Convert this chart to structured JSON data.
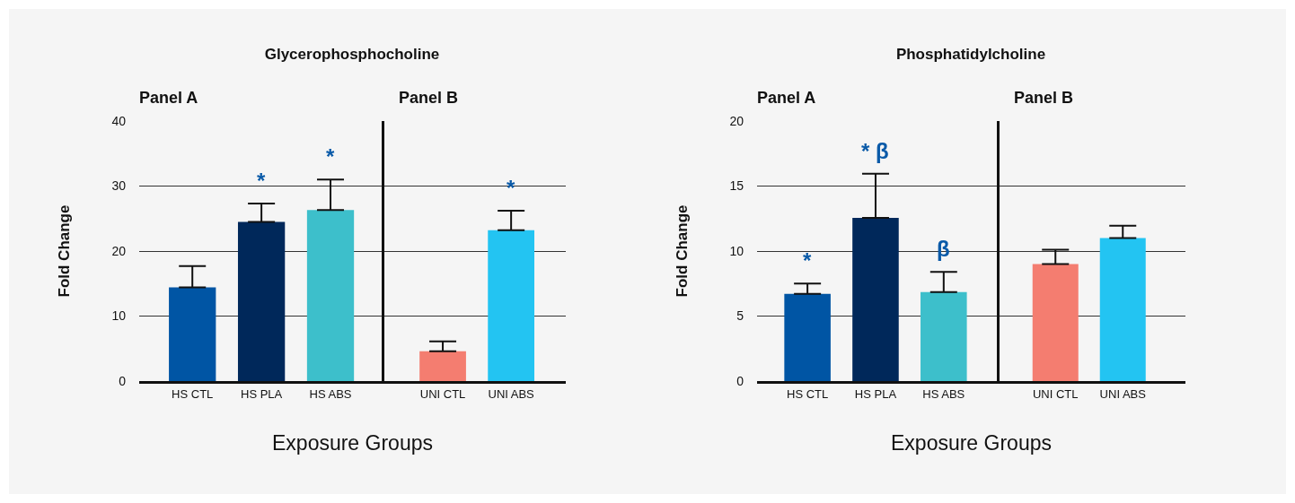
{
  "chart_data": [
    {
      "type": "bar",
      "title": "Glycerophosphocholine",
      "xlabel": "Exposure Groups",
      "ylabel": "Fold Change",
      "categories": [
        "HS CTL",
        "HS PLA",
        "HS ABS"
      ],
      "values": [
        14.4,
        24.5,
        26.3
      ],
      "errors": [
        [
          14.4,
          17.7
        ],
        [
          24.5,
          27.3
        ],
        [
          26.3,
          31.0
        ]
      ],
      "colors": [
        "#0055a4",
        "#00285a",
        "#3dbfcb"
      ],
      "ylim": [
        0,
        40
      ],
      "yticks": [
        0,
        10,
        20,
        30,
        40
      ],
      "grid": "y",
      "annotations": [
        "Panel A",
        {
          "text": "*",
          "x": "HS PLA",
          "y": 27.3
        },
        {
          "text": "*",
          "x": "HS ABS",
          "y": 31.0
        }
      ]
    },
    {
      "type": "bar",
      "categories": [
        "UNI CTL",
        "UNI ABS"
      ],
      "values": [
        4.6,
        23.2
      ],
      "errors": [
        [
          4.6,
          6.1
        ],
        [
          23.2,
          26.2
        ]
      ],
      "colors": [
        "#f47d70",
        "#23c4f2"
      ],
      "ylim": [
        0,
        40
      ],
      "yticks": [
        0,
        10,
        20,
        30,
        40
      ],
      "grid": "y",
      "tick_labels": "x",
      "annotations": [
        "Panel B",
        {
          "text": "*",
          "x": "UNI ABS",
          "y": 26.2
        }
      ]
    },
    {
      "type": "bar",
      "title": "Phosphatidylcholine",
      "xlabel": "Exposure Groups",
      "ylabel": "Fold Change",
      "categories": [
        "HS CTL",
        "HS PLA",
        "HS ABS"
      ],
      "values": [
        6.7,
        12.55,
        6.85
      ],
      "errors": [
        [
          6.7,
          7.5
        ],
        [
          12.55,
          15.95
        ],
        [
          6.85,
          8.4
        ]
      ],
      "colors": [
        "#0055a4",
        "#00285a",
        "#3dbfcb"
      ],
      "ylim": [
        0,
        20
      ],
      "yticks": [
        0,
        5,
        10,
        15,
        20
      ],
      "grid": "y",
      "annotations": [
        "Panel A",
        {
          "text": "*",
          "x": "HS CTL",
          "y": 7.5
        },
        {
          "text": "* β",
          "x": "HS PLA",
          "y": 15.95
        },
        {
          "text": "β",
          "x": "HS ABS",
          "y": 8.4
        }
      ]
    },
    {
      "type": "bar",
      "categories": [
        "UNI CTL",
        "UNI ABS"
      ],
      "values": [
        9.0,
        11.0
      ],
      "errors": [
        [
          9.0,
          10.1
        ],
        [
          11.0,
          11.95
        ]
      ],
      "colors": [
        "#f47d70",
        "#23c4f2"
      ],
      "ylim": [
        0,
        20
      ],
      "yticks": [
        0,
        5,
        10,
        15,
        20
      ],
      "grid": "y",
      "tick_labels": "x",
      "annotations": [
        "Panel B"
      ]
    }
  ]
}
